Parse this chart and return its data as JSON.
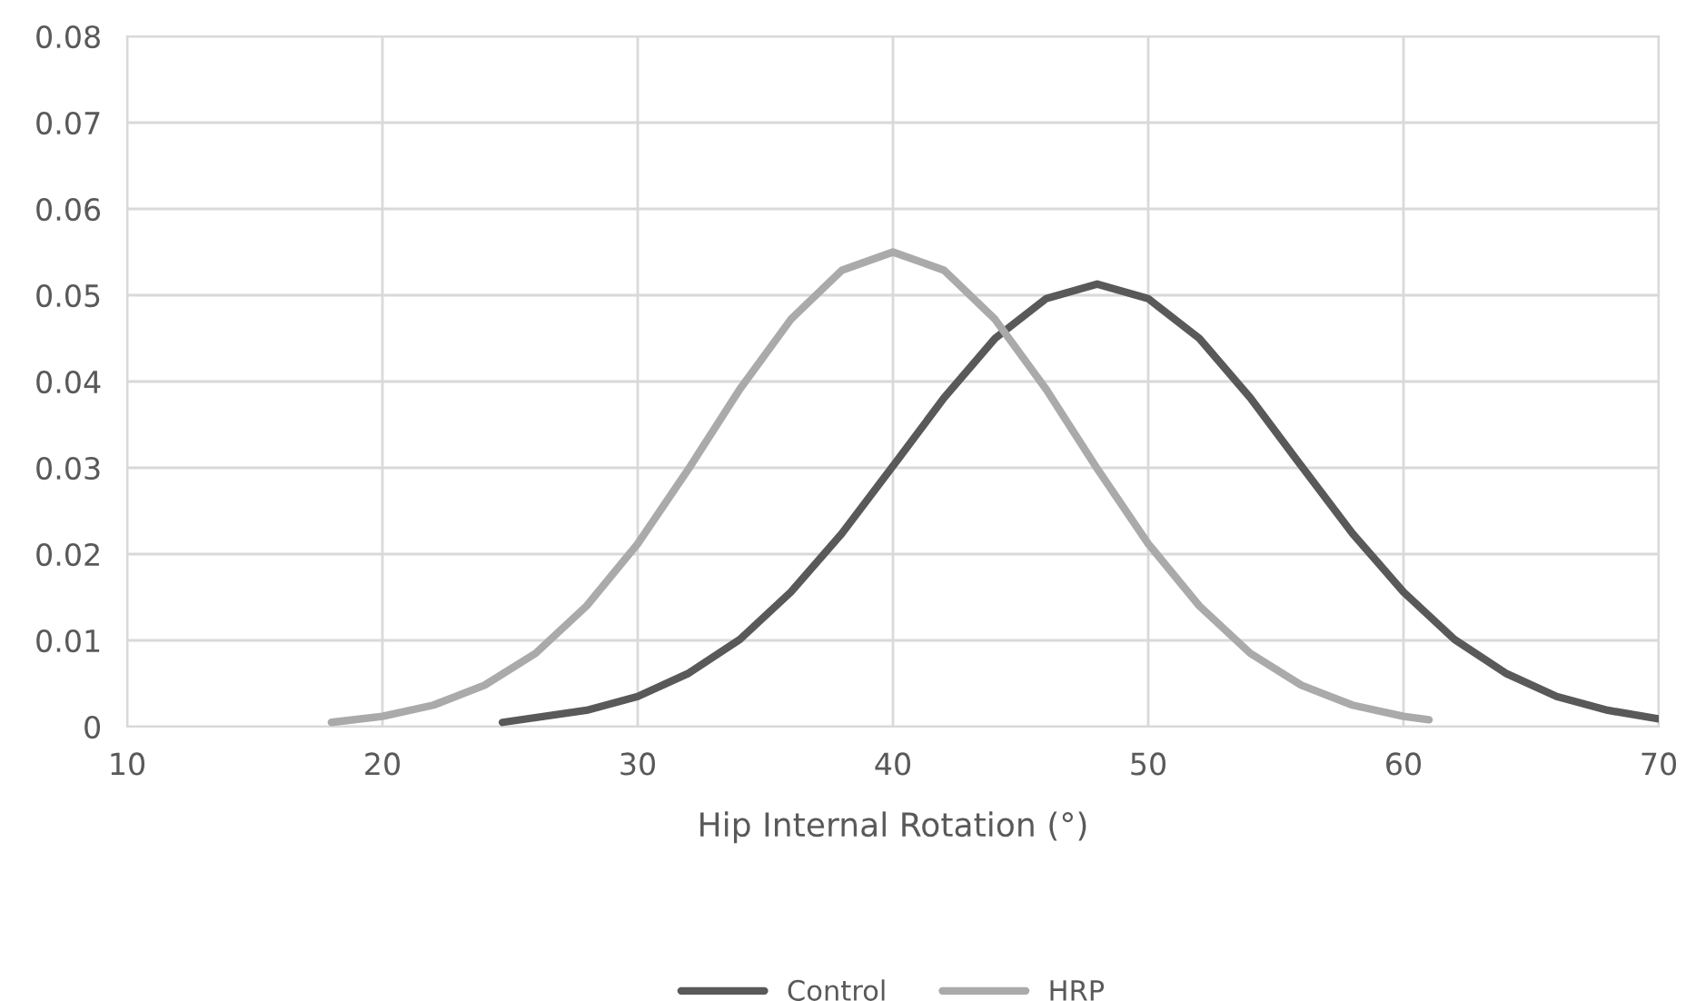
{
  "chart_data": {
    "type": "line",
    "xlabel": "Hip Internal Rotation (°)",
    "series": [
      {
        "name": "Control",
        "color": "#595959",
        "x": [
          24.7,
          28,
          30,
          32,
          34,
          36,
          38,
          40,
          42,
          44,
          46,
          48,
          50,
          52,
          54,
          56,
          58,
          60,
          62,
          64,
          66,
          68,
          70
        ],
        "values": [
          0.0005,
          0.0019,
          0.0035,
          0.0062,
          0.0101,
          0.0156,
          0.0224,
          0.0302,
          0.0381,
          0.045,
          0.0496,
          0.0513,
          0.0496,
          0.045,
          0.0381,
          0.0302,
          0.0224,
          0.0156,
          0.0101,
          0.0062,
          0.0035,
          0.0019,
          0.0009
        ]
      },
      {
        "name": "HRP",
        "color": "#aaaaaa",
        "x": [
          18,
          20,
          22,
          24,
          26,
          28,
          30,
          32,
          34,
          36,
          38,
          40,
          42,
          44,
          46,
          48,
          50,
          52,
          54,
          56,
          58,
          60,
          61
        ],
        "values": [
          0.0005,
          0.0012,
          0.0025,
          0.0048,
          0.0085,
          0.014,
          0.0212,
          0.0299,
          0.0391,
          0.0472,
          0.0529,
          0.055,
          0.0529,
          0.0472,
          0.0391,
          0.0299,
          0.0212,
          0.014,
          0.0085,
          0.0048,
          0.0025,
          0.0012,
          0.0008
        ]
      }
    ],
    "xlim": [
      10,
      70
    ],
    "xticks": [
      10,
      20,
      30,
      40,
      50,
      60,
      70
    ],
    "ylim": [
      0,
      0.08
    ],
    "yticks": [
      0,
      0.01,
      0.02,
      0.03,
      0.04,
      0.05,
      0.06,
      0.07,
      0.08
    ],
    "grid": true,
    "legend": "bottom",
    "marker": "none",
    "line_style": "solid"
  }
}
